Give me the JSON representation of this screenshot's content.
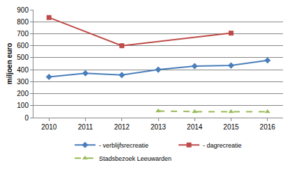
{
  "chart_data": {
    "type": "line",
    "y_label": "miljoen euro",
    "categories": [
      "2010",
      "2011",
      "2012",
      "2013",
      "2014",
      "2015",
      "2016"
    ],
    "series": [
      {
        "name": "- verblijfsrecreatie",
        "color": "#4a7ebb",
        "marker": "diamond",
        "line_style": "solid",
        "values": [
          340,
          370,
          355,
          400,
          430,
          435,
          478
        ]
      },
      {
        "name": "- dagrecreatie",
        "color": "#be4b48",
        "marker": "square",
        "line_style": "solid",
        "values": [
          835,
          null,
          600,
          null,
          null,
          705,
          null
        ]
      },
      {
        "name": "Stadsbezoek Leeuwarden",
        "color": "#98b954",
        "marker": "triangle",
        "line_style": "dash",
        "values": [
          null,
          null,
          null,
          55,
          50,
          50,
          50
        ]
      }
    ],
    "ylim": [
      0,
      900
    ],
    "yticks": [
      0,
      100,
      200,
      300,
      400,
      500,
      600,
      700,
      800,
      900
    ],
    "grid": true,
    "legend": "bottom"
  }
}
